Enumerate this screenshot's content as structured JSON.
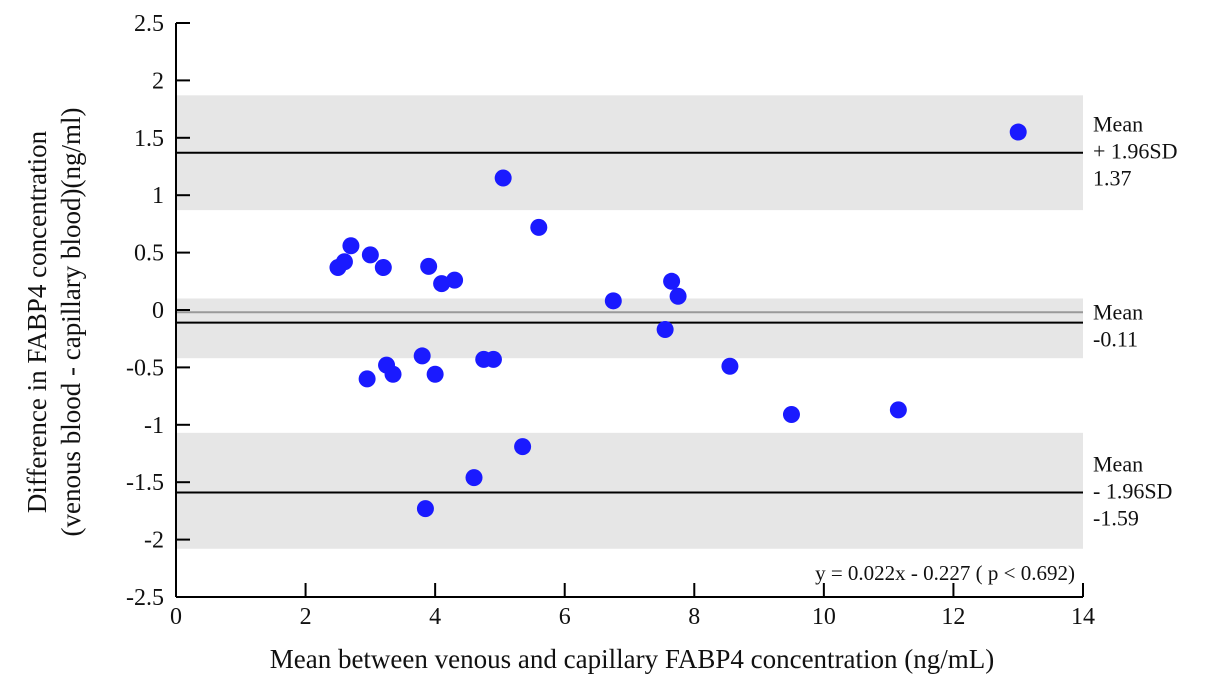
{
  "chart_data": {
    "type": "scatter",
    "title": "",
    "xlabel": "Mean between venous and capillary FABP4 concentration (ng/mL)",
    "ylabel_lines": [
      "Difference in FABP4 concentration",
      "(venous blood - capillary blood)(ng/ml)"
    ],
    "xlim": [
      0,
      14
    ],
    "ylim": [
      -2.5,
      2.5
    ],
    "xticks": [
      0,
      2,
      4,
      6,
      8,
      10,
      12,
      14
    ],
    "xtick_labels": [
      "0",
      "2",
      "4",
      "6",
      "8",
      "10",
      "12",
      "14"
    ],
    "yticks": [
      2.5,
      2,
      1.5,
      1,
      0.5,
      0,
      -0.5,
      -1,
      -1.5,
      -2,
      -2.5
    ],
    "ytick_labels": [
      "2.5",
      "2",
      "1.5",
      "1",
      "0.5",
      "0",
      "-0.5",
      "-1",
      "-1.5",
      "-2",
      "-2.5"
    ],
    "grid": false,
    "point_color": "#1a1aff",
    "band_color": "#e6e6e6",
    "bands": [
      {
        "from": 0.87,
        "to": 1.87
      },
      {
        "from": -0.42,
        "to": 0.1
      },
      {
        "from": -2.08,
        "to": -1.07
      }
    ],
    "zero_line": {
      "y": -0.02,
      "color": "#999999"
    },
    "lines": [
      {
        "y": 1.37,
        "label_lines": [
          "Mean",
          "+ 1.96SD",
          "1.37"
        ]
      },
      {
        "y": -0.11,
        "label_lines": [
          "Mean",
          "-0.11"
        ]
      },
      {
        "y": -1.59,
        "label_lines": [
          "Mean",
          "- 1.96SD",
          "-1.59"
        ]
      }
    ],
    "points": [
      {
        "x": 2.5,
        "y": 0.37
      },
      {
        "x": 2.6,
        "y": 0.42
      },
      {
        "x": 2.7,
        "y": 0.56
      },
      {
        "x": 3.0,
        "y": 0.48
      },
      {
        "x": 3.2,
        "y": 0.37
      },
      {
        "x": 3.9,
        "y": 0.38
      },
      {
        "x": 4.1,
        "y": 0.23
      },
      {
        "x": 4.3,
        "y": 0.26
      },
      {
        "x": 5.05,
        "y": 1.15
      },
      {
        "x": 5.6,
        "y": 0.72
      },
      {
        "x": 6.75,
        "y": 0.08
      },
      {
        "x": 7.65,
        "y": 0.25
      },
      {
        "x": 7.75,
        "y": 0.12
      },
      {
        "x": 7.55,
        "y": -0.17
      },
      {
        "x": 3.25,
        "y": -0.48
      },
      {
        "x": 3.8,
        "y": -0.4
      },
      {
        "x": 4.75,
        "y": -0.43
      },
      {
        "x": 4.9,
        "y": -0.43
      },
      {
        "x": 2.95,
        "y": -0.6
      },
      {
        "x": 3.35,
        "y": -0.56
      },
      {
        "x": 4.0,
        "y": -0.56
      },
      {
        "x": 8.55,
        "y": -0.49
      },
      {
        "x": 9.5,
        "y": -0.91
      },
      {
        "x": 11.15,
        "y": -0.87
      },
      {
        "x": 5.35,
        "y": -1.19
      },
      {
        "x": 4.6,
        "y": -1.46
      },
      {
        "x": 3.85,
        "y": -1.73
      },
      {
        "x": 13.0,
        "y": 1.55
      }
    ],
    "equation": "y = 0.022x - 0.227 ( p < 0.692)"
  }
}
